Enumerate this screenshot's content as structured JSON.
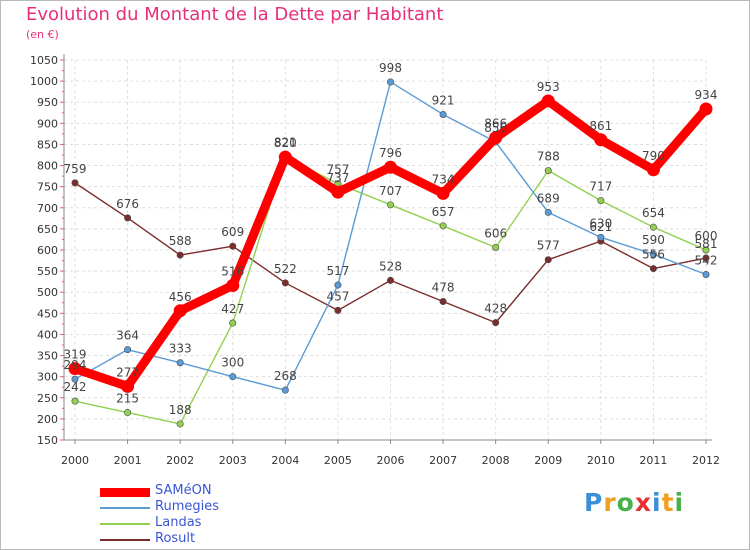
{
  "title": "Evolution du Montant de la Dette par Habitant",
  "subtitle": "(en €)",
  "logo_text": "Proxiti",
  "colors": {
    "title": "#e8307a",
    "axis": "#8a8a8a",
    "grid": "#dedede",
    "legend_text": "#3a56d4",
    "logo_letters": [
      "#3a8fd8",
      "#f0a020",
      "#48b048",
      "#e83030",
      "#3a8fd8",
      "#f0a020",
      "#48b048"
    ]
  },
  "chart_data": {
    "type": "line",
    "title": "Evolution du Montant de la Dette par Habitant",
    "subtitle": "(en €)",
    "xlabel": "",
    "ylabel": "",
    "x": [
      "2000",
      "2001",
      "2002",
      "2003",
      "2004",
      "2005",
      "2006",
      "2007",
      "2008",
      "2009",
      "2010",
      "2011",
      "2012"
    ],
    "y_ticks": [
      150,
      200,
      250,
      300,
      350,
      400,
      450,
      500,
      550,
      600,
      650,
      700,
      750,
      800,
      850,
      900,
      950,
      1000,
      1050
    ],
    "ylim": [
      150,
      1050
    ],
    "grid": true,
    "legend_position": "bottom-left",
    "series": [
      {
        "name": "SAMéON",
        "color": "#ff0000",
        "values": [
          319,
          277,
          456,
          516,
          820,
          737,
          796,
          734,
          866,
          953,
          861,
          790,
          934
        ],
        "labels": [
          "319",
          "277",
          "456",
          "516",
          "820",
          "737",
          "796",
          "734",
          "866",
          "953",
          "861",
          "790",
          "934"
        ]
      },
      {
        "name": "Rumegies",
        "color": "#5b9bd5",
        "values": [
          294,
          364,
          333,
          300,
          268,
          517,
          998,
          921,
          856,
          689,
          630,
          590,
          542
        ],
        "labels": [
          "294",
          "364",
          "333",
          "300",
          "268",
          "517",
          "998",
          "921",
          "856",
          "689",
          "630",
          "590",
          "542"
        ]
      },
      {
        "name": "Landas",
        "color": "#92d050",
        "values": [
          242,
          215,
          188,
          427,
          821,
          757,
          707,
          657,
          606,
          788,
          717,
          654,
          600
        ],
        "labels": [
          "242",
          "215",
          "188",
          "427",
          "821",
          "757",
          "707",
          "657",
          "606",
          "788",
          "717",
          "654",
          "600"
        ]
      },
      {
        "name": "Rosult",
        "color": "#7b2c2c",
        "values": [
          759,
          676,
          588,
          609,
          522,
          457,
          528,
          478,
          428,
          577,
          621,
          556,
          581
        ],
        "labels": [
          "759",
          "676",
          "588",
          "609",
          "522",
          "457",
          "528",
          "478",
          "428",
          "577",
          "621",
          "556",
          "581"
        ]
      }
    ]
  }
}
